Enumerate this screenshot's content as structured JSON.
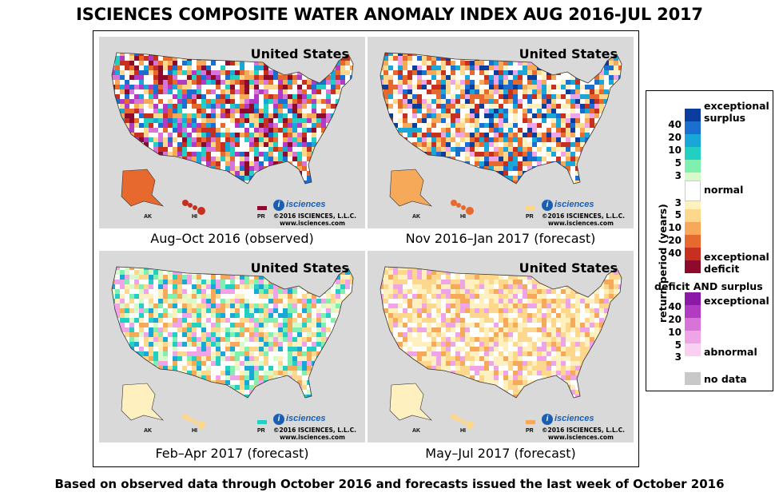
{
  "title": "ISCIENCES COMPOSITE WATER ANOMALY INDEX AUG 2016-JUL 2017",
  "footer": "Based on observed data through October 2016 and forecasts issued the last week of October 2016",
  "colors": {
    "exceptional_surplus": "#0a3d9c",
    "surplus_40": "#1a6fd0",
    "surplus_20": "#19a7d8",
    "surplus_10": "#22cfc2",
    "surplus_5": "#7ff0b0",
    "surplus_3": "#d6fbc8",
    "normal": "#ffffff",
    "deficit_3": "#fff0c0",
    "deficit_5": "#fdd88c",
    "deficit_10": "#f7a95a",
    "deficit_20": "#e8692d",
    "deficit_40": "#c7301f",
    "exceptional_deficit": "#8e0a2c",
    "both_exceptional": "#8b1aa8",
    "both_40": "#b33bc4",
    "both_20": "#d873d8",
    "both_10": "#f0a4e8",
    "both_5": "#fad0f2",
    "no_data": "#c8c8c8",
    "map_bg": "#d9d9d9",
    "land": "#ffffff"
  },
  "panels": [
    {
      "region": "United States",
      "caption": "Aug–Oct 2016 (observed)",
      "copyright": "©2016 ISCIENCES, L.L.C.",
      "site": "www.isciences.com",
      "brand": "isciences",
      "inset_ak": "AK",
      "inset_hi": "HI",
      "inset_pr": "PR",
      "dominant": "deficit_20"
    },
    {
      "region": "United States",
      "caption": "Nov 2016–Jan 2017 (forecast)",
      "copyright": "©2016 ISCIENCES, L.L.C.",
      "site": "www.isciences.com",
      "brand": "isciences",
      "inset_ak": "AK",
      "inset_hi": "HI",
      "inset_pr": "PR",
      "dominant": "deficit_10"
    },
    {
      "region": "United States",
      "caption": "Feb–Apr 2017 (forecast)",
      "copyright": "©2016 ISCIENCES, L.L.C.",
      "site": "www.isciences.com",
      "brand": "isciences",
      "inset_ak": "AK",
      "inset_hi": "HI",
      "inset_pr": "PR",
      "dominant": "deficit_5"
    },
    {
      "region": "United States",
      "caption": "May–Jul 2017 (forecast)",
      "copyright": "©2016 ISCIENCES, L.L.C.",
      "site": "www.isciences.com",
      "brand": "isciences",
      "inset_ak": "AK",
      "inset_hi": "HI",
      "inset_pr": "PR",
      "dominant": "deficit_5"
    }
  ],
  "legend": {
    "axis_label": "return period (years)",
    "exceptional_surplus": [
      "exceptional",
      "surplus"
    ],
    "normal": "normal",
    "exceptional_deficit": [
      "exceptional",
      "deficit"
    ],
    "deficit_and_surplus": "deficit AND surplus",
    "both_exceptional": "exceptional",
    "abnormal": "abnormal",
    "no_data": "no data",
    "surplus_ticks": [
      "40",
      "20",
      "10",
      "5",
      "3"
    ],
    "deficit_ticks": [
      "3",
      "5",
      "10",
      "20",
      "40"
    ],
    "both_ticks": [
      "40",
      "20",
      "10",
      "5",
      "3"
    ]
  }
}
